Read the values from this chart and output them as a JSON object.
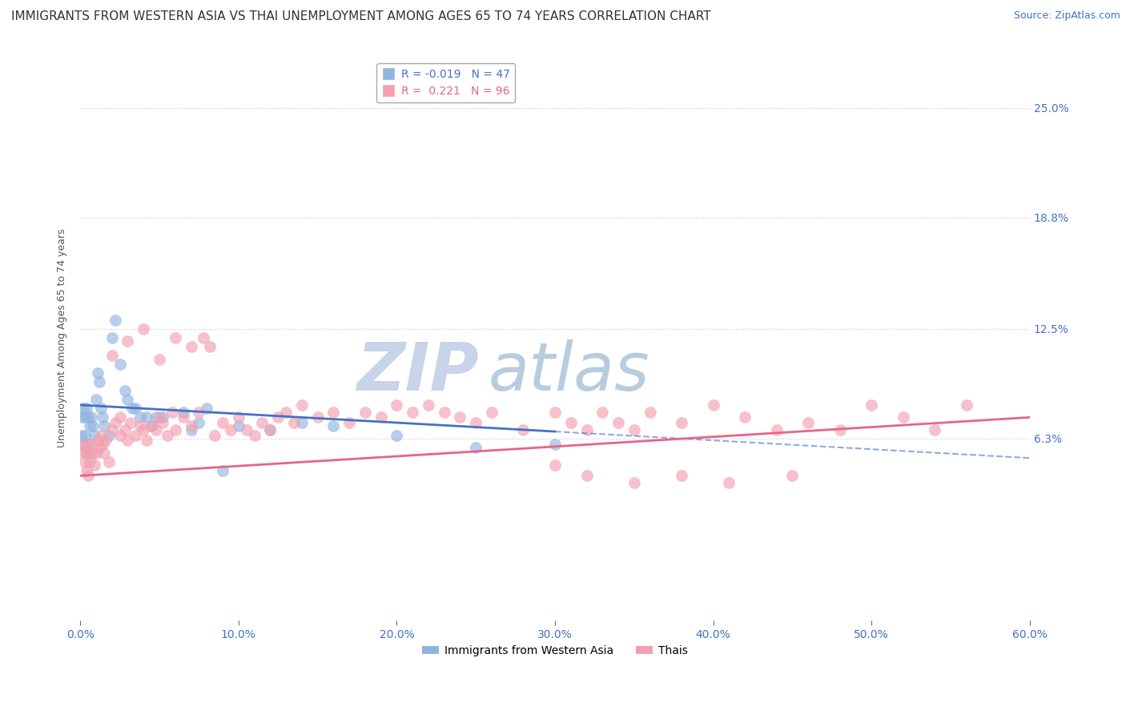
{
  "title": "IMMIGRANTS FROM WESTERN ASIA VS THAI UNEMPLOYMENT AMONG AGES 65 TO 74 YEARS CORRELATION CHART",
  "source": "Source: ZipAtlas.com",
  "ylabel": "Unemployment Among Ages 65 to 74 years",
  "xlim": [
    0.0,
    0.6
  ],
  "ylim": [
    -0.04,
    0.28
  ],
  "yticks": [
    0.063,
    0.125,
    0.188,
    0.25
  ],
  "ytick_labels": [
    "6.3%",
    "12.5%",
    "18.8%",
    "25.0%"
  ],
  "xticks": [
    0.0,
    0.1,
    0.2,
    0.3,
    0.4,
    0.5,
    0.6
  ],
  "xtick_labels": [
    "0.0%",
    "10.0%",
    "20.0%",
    "30.0%",
    "40.0%",
    "50.0%",
    "60.0%"
  ],
  "grid_color": "#c8c8c8",
  "background_color": "#ffffff",
  "watermark_zip": "ZIP",
  "watermark_atlas": "atlas",
  "axis_color": "#4472c4",
  "tick_color": "#4472c4",
  "title_fontsize": 11,
  "axis_label_fontsize": 9,
  "tick_fontsize": 10,
  "source_fontsize": 9,
  "legend_fontsize": 10,
  "series": [
    {
      "name": "Immigrants from Western Asia",
      "R": -0.019,
      "N": 47,
      "color": "#92b4e0",
      "edge_color": "#92b4e0",
      "line_color": "#4472c4",
      "line_dash": "solid",
      "intercept": 0.082,
      "slope": -0.05,
      "x": [
        0.001,
        0.001,
        0.002,
        0.002,
        0.003,
        0.003,
        0.004,
        0.004,
        0.005,
        0.005,
        0.006,
        0.006,
        0.007,
        0.008,
        0.009,
        0.01,
        0.011,
        0.012,
        0.013,
        0.014,
        0.015,
        0.018,
        0.02,
        0.022,
        0.025,
        0.028,
        0.03,
        0.033,
        0.035,
        0.038,
        0.042,
        0.045,
        0.048,
        0.052,
        0.065,
        0.07,
        0.075,
        0.08,
        0.09,
        0.1,
        0.12,
        0.14,
        0.16,
        0.2,
        0.25,
        0.3,
        0.2
      ],
      "y": [
        0.075,
        0.065,
        0.08,
        0.06,
        0.075,
        0.065,
        0.08,
        0.055,
        0.075,
        0.06,
        0.07,
        0.055,
        0.075,
        0.07,
        0.065,
        0.085,
        0.1,
        0.095,
        0.08,
        0.075,
        0.07,
        0.065,
        0.12,
        0.13,
        0.105,
        0.09,
        0.085,
        0.08,
        0.08,
        0.075,
        0.075,
        0.07,
        0.075,
        0.075,
        0.078,
        0.068,
        0.072,
        0.08,
        0.045,
        0.07,
        0.068,
        0.072,
        0.07,
        0.065,
        0.058,
        0.06,
        0.27
      ]
    },
    {
      "name": "Thais",
      "R": 0.221,
      "N": 96,
      "color": "#f4a0b0",
      "edge_color": "#f4a0b0",
      "line_color": "#e8648a",
      "line_dash": "solid",
      "intercept": 0.042,
      "slope": 0.055,
      "x": [
        0.001,
        0.002,
        0.003,
        0.004,
        0.004,
        0.005,
        0.005,
        0.006,
        0.007,
        0.008,
        0.009,
        0.01,
        0.011,
        0.012,
        0.013,
        0.014,
        0.015,
        0.016,
        0.018,
        0.02,
        0.022,
        0.025,
        0.025,
        0.028,
        0.03,
        0.032,
        0.035,
        0.038,
        0.04,
        0.042,
        0.045,
        0.048,
        0.05,
        0.052,
        0.055,
        0.058,
        0.06,
        0.065,
        0.07,
        0.075,
        0.078,
        0.082,
        0.085,
        0.09,
        0.095,
        0.1,
        0.105,
        0.11,
        0.115,
        0.12,
        0.125,
        0.13,
        0.135,
        0.14,
        0.15,
        0.16,
        0.17,
        0.18,
        0.19,
        0.2,
        0.21,
        0.22,
        0.23,
        0.24,
        0.25,
        0.26,
        0.28,
        0.3,
        0.31,
        0.32,
        0.33,
        0.34,
        0.35,
        0.36,
        0.38,
        0.4,
        0.42,
        0.44,
        0.46,
        0.48,
        0.5,
        0.52,
        0.54,
        0.56,
        0.02,
        0.03,
        0.04,
        0.05,
        0.06,
        0.07,
        0.3,
        0.32,
        0.35,
        0.38,
        0.41,
        0.45
      ],
      "y": [
        0.06,
        0.055,
        0.05,
        0.058,
        0.045,
        0.055,
        0.042,
        0.05,
        0.06,
        0.055,
        0.048,
        0.055,
        0.062,
        0.058,
        0.065,
        0.06,
        0.055,
        0.062,
        0.05,
        0.068,
        0.072,
        0.065,
        0.075,
        0.068,
        0.062,
        0.072,
        0.065,
        0.07,
        0.068,
        0.062,
        0.07,
        0.068,
        0.075,
        0.072,
        0.065,
        0.078,
        0.068,
        0.075,
        0.07,
        0.078,
        0.12,
        0.115,
        0.065,
        0.072,
        0.068,
        0.075,
        0.068,
        0.065,
        0.072,
        0.068,
        0.075,
        0.078,
        0.072,
        0.082,
        0.075,
        0.078,
        0.072,
        0.078,
        0.075,
        0.082,
        0.078,
        0.082,
        0.078,
        0.075,
        0.072,
        0.078,
        0.068,
        0.078,
        0.072,
        0.068,
        0.078,
        0.072,
        0.068,
        0.078,
        0.072,
        0.082,
        0.075,
        0.068,
        0.072,
        0.068,
        0.082,
        0.075,
        0.068,
        0.082,
        0.11,
        0.118,
        0.125,
        0.108,
        0.12,
        0.115,
        0.048,
        0.042,
        0.038,
        0.042,
        0.038,
        0.042
      ]
    }
  ]
}
